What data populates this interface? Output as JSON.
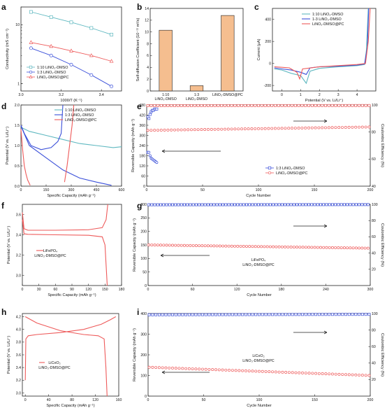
{
  "chart_data": [
    {
      "panel": "a",
      "type": "scatter",
      "xlabel": "1000/T (K⁻¹)",
      "ylabel": "Conductivity (mS cm⁻¹)",
      "xlim": [
        3.0,
        3.5
      ],
      "ylim": [
        0.75,
        20
      ],
      "ylog": true,
      "xticks": [
        "3.0",
        "3.2",
        "3.4"
      ],
      "yticks": [
        "1",
        "10"
      ],
      "legend_position": "bottom-left",
      "series": [
        {
          "name": "1:10 LiNO₃-DMSO",
          "color": "#5fb8c0",
          "marker": "square",
          "x": [
            3.05,
            3.15,
            3.25,
            3.35,
            3.45
          ],
          "y": [
            16.5,
            13.5,
            11.0,
            8.8,
            6.8
          ]
        },
        {
          "name": "1:3 LiNO₃-DMSO",
          "color": "#3a4fd9",
          "marker": "circle",
          "x": [
            3.05,
            3.15,
            3.25,
            3.35,
            3.45
          ],
          "y": [
            4.0,
            3.0,
            2.1,
            1.4,
            0.9
          ]
        },
        {
          "name": "LiNO₃-DMSO@PC",
          "color": "#ee5a5a",
          "marker": "triangle",
          "x": [
            3.05,
            3.15,
            3.25,
            3.35,
            3.45
          ],
          "y": [
            5.0,
            4.3,
            3.6,
            3.0,
            2.4
          ]
        }
      ]
    },
    {
      "panel": "b",
      "type": "bar",
      "ylabel": "Self-diffusion Coefficient (10⁻¹¹ m²/s)",
      "categories": [
        [
          "1:10",
          "LiNO₃-DMSO"
        ],
        [
          "1:3",
          "LiNO₃-DMSO"
        ],
        [
          "LiNO₃-DMSO@PC"
        ]
      ],
      "values": [
        10.3,
        0.9,
        12.8
      ],
      "ylim": [
        0,
        14
      ],
      "yticks": [
        "0",
        "2",
        "4",
        "6",
        "8",
        "10",
        "12",
        "14"
      ],
      "bar_color": "#f5be8f"
    },
    {
      "panel": "c",
      "type": "line",
      "xlabel": "Potential (V vs. Li/Li⁺)",
      "ylabel": "Current (μA)",
      "xlim": [
        -0.5,
        5.0
      ],
      "ylim": [
        -250,
        500
      ],
      "xticks": [
        "0",
        "1",
        "2",
        "3",
        "4"
      ],
      "yticks": [
        "-200",
        "0",
        "200",
        "400"
      ],
      "legend_position": "top-center",
      "series": [
        {
          "name": "1:10 LiNO₃-DMSO",
          "color": "#5fb8c0",
          "points": [
            [
              -0.4,
              -50
            ],
            [
              0,
              -60
            ],
            [
              0.5,
              -90
            ],
            [
              1.0,
              -110
            ],
            [
              1.3,
              -180
            ],
            [
              1.5,
              -70
            ],
            [
              2.0,
              -45
            ],
            [
              3.0,
              -30
            ],
            [
              4.0,
              -20
            ],
            [
              4.4,
              -10
            ],
            [
              4.5,
              120
            ],
            [
              4.6,
              500
            ]
          ]
        },
        {
          "name": "1-3 LiNO₃-DMSO",
          "color": "#3a4fd9",
          "points": [
            [
              -0.4,
              -40
            ],
            [
              0,
              -50
            ],
            [
              0.5,
              -60
            ],
            [
              1.0,
              -80
            ],
            [
              1.3,
              -100
            ],
            [
              1.5,
              -40
            ],
            [
              2.0,
              -30
            ],
            [
              3.0,
              -25
            ],
            [
              4.0,
              -15
            ],
            [
              4.4,
              -5
            ],
            [
              4.55,
              150
            ],
            [
              4.62,
              500
            ]
          ]
        },
        {
          "name": "LiNO₃-DMSO@PC",
          "color": "#ee5a5a",
          "points": [
            [
              -0.4,
              -30
            ],
            [
              0,
              -35
            ],
            [
              0.4,
              -40
            ],
            [
              0.8,
              -80
            ],
            [
              0.95,
              -140
            ],
            [
              1.1,
              -50
            ],
            [
              2.0,
              -30
            ],
            [
              3.0,
              -20
            ],
            [
              4.0,
              -10
            ],
            [
              4.45,
              0
            ],
            [
              4.6,
              200
            ],
            [
              4.7,
              500
            ]
          ]
        }
      ]
    },
    {
      "panel": "d",
      "type": "line",
      "xlabel": "Specific Capacity (mAh g⁻¹)",
      "ylabel": "Potential (V vs. Li/Li⁺)",
      "xlim": [
        0,
        600
      ],
      "ylim": [
        0,
        2.0
      ],
      "xticks": [
        "0",
        "150",
        "300",
        "450",
        "600"
      ],
      "yticks": [
        "0.0",
        "0.5",
        "1.0",
        "1.5",
        "2.0"
      ],
      "legend_position": "top-right",
      "series": [
        {
          "name": "1:10 LiNO₃-DMSO",
          "color": "#5fb8c0",
          "points": [
            [
              0,
              1.45
            ],
            [
              50,
              1.35
            ],
            [
              150,
              1.25
            ],
            [
              250,
              1.15
            ],
            [
              350,
              1.05
            ],
            [
              450,
              1.0
            ],
            [
              550,
              0.95
            ],
            [
              600,
              0.97
            ]
          ]
        },
        {
          "name": "1:3 LiNO₃-DMSO",
          "color": "#3a4fd9",
          "points": [
            [
              0,
              1.5
            ],
            [
              20,
              1.3
            ],
            [
              60,
              1.0
            ],
            [
              120,
              0.9
            ],
            [
              180,
              0.95
            ],
            [
              220,
              1.1
            ],
            [
              240,
              1.3
            ],
            [
              250,
              2.0
            ]
          ]
        },
        {
          "name": "1:3 LiNO₃-DMSO discharge",
          "color": "#3a4fd9",
          "points": [
            [
              0,
              1.48
            ],
            [
              50,
              1.0
            ],
            [
              150,
              0.7
            ],
            [
              250,
              0.4
            ],
            [
              350,
              0.2
            ],
            [
              450,
              0.1
            ],
            [
              540,
              0.02
            ]
          ]
        },
        {
          "name": "LiNO₃-DMSO@PC",
          "color": "#ee5a5a",
          "points": [
            [
              0,
              1.4
            ],
            [
              10,
              0.9
            ],
            [
              20,
              0.5
            ],
            [
              30,
              0.3
            ],
            [
              40,
              0.15
            ],
            [
              55,
              0.02
            ]
          ]
        },
        {
          "name": "LiNO₃-DMSO@PC charge",
          "color": "#ee5a5a",
          "points": [
            [
              260,
              0.1
            ],
            [
              275,
              0.5
            ],
            [
              290,
              1.0
            ],
            [
              305,
              1.5
            ],
            [
              315,
              2.0
            ]
          ]
        }
      ]
    },
    {
      "panel": "e",
      "type": "scatter",
      "xlabel": "Cycle Number",
      "ylabel": "Reversible Capacity (mAh g⁻¹)",
      "y2label": "Coulombic Efficiency (%)",
      "xlim": [
        0,
        200
      ],
      "ylim": [
        0,
        480
      ],
      "y2lim": [
        40,
        100
      ],
      "xticks": [
        "0",
        "50",
        "100",
        "150",
        "200"
      ],
      "yticks": [
        "0",
        "60",
        "120",
        "180",
        "240",
        "300",
        "360",
        "420",
        "480"
      ],
      "y2ticks": [
        "40",
        "60",
        "80",
        "100"
      ],
      "legend_position": "bottom-right",
      "series": [
        {
          "name": "1:3 LiNO₃-DMSO",
          "color": "#3a4fd9",
          "marker": "square",
          "axis": "right",
          "x": [
            1,
            2,
            3,
            4,
            5,
            6,
            7,
            8,
            9
          ],
          "y": [
            65,
            90,
            93,
            95,
            96,
            96,
            97,
            97,
            97
          ]
        },
        {
          "name": "1:3 LiNO₃-DMSO capacity",
          "color": "#3a4fd9",
          "marker": "circle",
          "axis": "left",
          "x": [
            1,
            2,
            3,
            4,
            5,
            6,
            7,
            8,
            9
          ],
          "y": [
            410,
            200,
            180,
            165,
            160,
            155,
            150,
            145,
            140
          ]
        },
        {
          "name": "LiNO₃-DMSO@PC",
          "color": "#ee5a5a",
          "marker": "circle",
          "axis": "left",
          "x_range": [
            1,
            200
          ],
          "y_start": 330,
          "y_end": 350
        },
        {
          "name": "LiNO₃-DMSO@PC CE",
          "color": "#ee5a5a",
          "marker": "square",
          "axis": "right",
          "x_range": [
            1,
            200
          ],
          "y_start": 99.5,
          "y_end": 99.6
        }
      ]
    },
    {
      "panel": "f",
      "type": "line",
      "xlabel": "Specific Capacity (mAh g⁻¹)",
      "ylabel": "Potential (V vs. Li/Li⁺)",
      "xlim": [
        0,
        180
      ],
      "ylim": [
        2.9,
        3.7
      ],
      "xticks": [
        "0",
        "30",
        "60",
        "90",
        "120",
        "150",
        "180"
      ],
      "yticks": [
        "3.0",
        "3.2",
        "3.4",
        "3.6"
      ],
      "annotation": [
        "LiFePO₄",
        "LiNO₃-DMSO@PC"
      ],
      "series": [
        {
          "name": "charge",
          "color": "#ee5a5a",
          "points": [
            [
              0,
              3.62
            ],
            [
              3,
              3.46
            ],
            [
              10,
              3.445
            ],
            [
              60,
              3.445
            ],
            [
              120,
              3.45
            ],
            [
              145,
              3.47
            ],
            [
              152,
              3.55
            ],
            [
              155,
              3.7
            ]
          ]
        },
        {
          "name": "discharge",
          "color": "#ee5a5a",
          "points": [
            [
              0,
              3.55
            ],
            [
              3,
              3.41
            ],
            [
              10,
              3.405
            ],
            [
              60,
              3.4
            ],
            [
              120,
              3.395
            ],
            [
              145,
              3.38
            ],
            [
              150,
              3.3
            ],
            [
              153,
              3.0
            ],
            [
              154,
              2.9
            ]
          ]
        }
      ]
    },
    {
      "panel": "g",
      "type": "scatter",
      "xlabel": "Cycle Number",
      "ylabel": "Reversible Capacity (mAh g⁻¹)",
      "y2label": "Coulombic Efficiency (%)",
      "xlim": [
        0,
        300
      ],
      "ylim": [
        0,
        300
      ],
      "y2lim": [
        0,
        100
      ],
      "xticks": [
        "0",
        "60",
        "120",
        "180",
        "240",
        "300"
      ],
      "yticks": [
        "0",
        "50",
        "100",
        "150",
        "200",
        "250",
        "300"
      ],
      "y2ticks": [
        "20",
        "40",
        "60",
        "80",
        "100"
      ],
      "annotation": [
        "LiFePO₄",
        "LiNO₃-DMSO@PC"
      ],
      "series": [
        {
          "name": "capacity",
          "color": "#ee5a5a",
          "marker": "circle",
          "axis": "left",
          "x_range": [
            1,
            300
          ],
          "y_start": 150,
          "y_end": 138
        },
        {
          "name": "CE",
          "color": "#3a4fd9",
          "marker": "square",
          "axis": "right",
          "x_range": [
            1,
            300
          ],
          "y_start": 99.5,
          "y_end": 99.7
        }
      ]
    },
    {
      "panel": "h",
      "type": "line",
      "xlabel": "Specific Capacity (mAh g⁻¹)",
      "ylabel": "Potential (V vs. Li/Li⁺)",
      "xlim": [
        -5,
        160
      ],
      "ylim": [
        2.95,
        4.25
      ],
      "xticks": [
        "0",
        "40",
        "80",
        "120",
        "160"
      ],
      "yticks": [
        "3.0",
        "3.2",
        "3.4",
        "3.6",
        "3.8",
        "4.0",
        "4.2"
      ],
      "annotation": [
        "LiCoO₂",
        "LiNO₃-DMSO@PC"
      ],
      "series": [
        {
          "name": "charge",
          "color": "#ee5a5a",
          "points": [
            [
              0,
              3.2
            ],
            [
              1,
              3.85
            ],
            [
              5,
              3.9
            ],
            [
              20,
              3.92
            ],
            [
              60,
              3.95
            ],
            [
              100,
              4.0
            ],
            [
              130,
              4.08
            ],
            [
              145,
              4.15
            ],
            [
              155,
              4.2
            ]
          ]
        },
        {
          "name": "discharge",
          "color": "#ee5a5a",
          "points": [
            [
              0,
              4.2
            ],
            [
              20,
              4.1
            ],
            [
              60,
              3.98
            ],
            [
              100,
              3.92
            ],
            [
              125,
              3.9
            ],
            [
              135,
              3.85
            ],
            [
              138,
              3.4
            ],
            [
              140,
              2.95
            ]
          ]
        }
      ]
    },
    {
      "panel": "i",
      "type": "scatter",
      "xlabel": "Cycle Number",
      "ylabel": "Reversible Capacity (mAh g⁻¹)",
      "y2label": "Coulombic Efficiency (%)",
      "xlim": [
        0,
        200
      ],
      "ylim": [
        0,
        400
      ],
      "y2lim": [
        0,
        100
      ],
      "xticks": [
        "0",
        "50",
        "100",
        "150",
        "200"
      ],
      "yticks": [
        "0",
        "100",
        "200",
        "300",
        "400"
      ],
      "y2ticks": [
        "20",
        "40",
        "60",
        "80",
        "100"
      ],
      "annotation": [
        "LiCoO₂",
        "LiNO₃-DMSO@PC"
      ],
      "series": [
        {
          "name": "capacity",
          "color": "#ee5a5a",
          "marker": "circle",
          "axis": "left",
          "x_range": [
            1,
            200
          ],
          "y_start": 140,
          "y_end": 100
        },
        {
          "name": "CE",
          "color": "#3a4fd9",
          "marker": "square",
          "axis": "right",
          "x_range": [
            1,
            200
          ],
          "y_start": 98.5,
          "y_end": 99.0
        }
      ]
    }
  ]
}
